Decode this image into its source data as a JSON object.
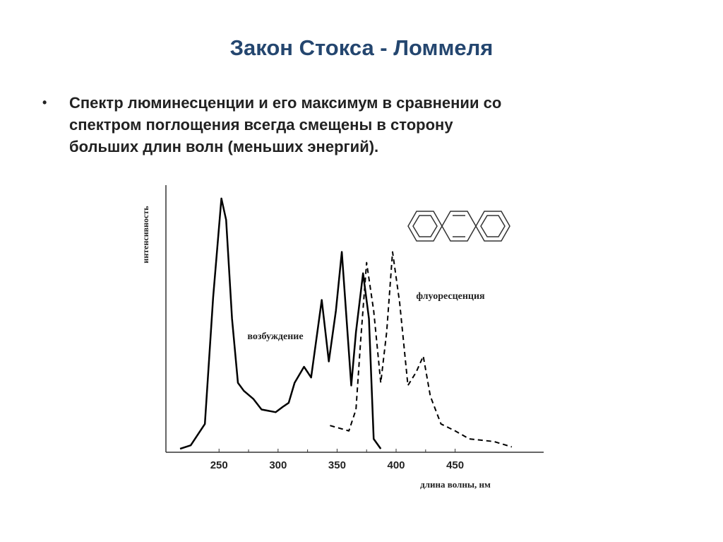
{
  "slide": {
    "title": "Закон Стокса - Ломмеля",
    "bullet_lines": [
      "Спектр люминесценции и его максимум в сравнении со",
      "спектром поглощения всегда смещены в сторону",
      "больших длин волн (меньших энергий)."
    ]
  },
  "chart_data": {
    "type": "line",
    "x_label": "длина волны, нм",
    "y_label": "интенсивность",
    "xlim": [
      205,
      525
    ],
    "xticks": [
      250,
      300,
      350,
      400,
      450
    ],
    "ylim": [
      0,
      100
    ],
    "series": [
      {
        "name": "возбуждение",
        "color": "#000000",
        "style": "solid",
        "x": [
          217,
          226,
          238,
          245,
          252,
          256,
          261,
          266,
          271,
          279,
          286,
          298,
          304,
          309,
          314,
          322,
          328,
          337,
          343,
          349,
          354,
          362,
          366,
          372,
          377,
          381,
          387
        ],
        "values": [
          1.3,
          2.6,
          10.6,
          58,
          95,
          87,
          50,
          26,
          23,
          20,
          16,
          15,
          17,
          18.5,
          26,
          32,
          28,
          57,
          34,
          53,
          75,
          25,
          45,
          67,
          50,
          5,
          1.3
        ]
      },
      {
        "name": "флуоресценция",
        "color": "#000000",
        "style": "dashed",
        "x": [
          344,
          360,
          366,
          370,
          375,
          381,
          387,
          392,
          397,
          403,
          410,
          417,
          423,
          429,
          438,
          450,
          462,
          483,
          498
        ],
        "values": [
          10,
          8,
          16,
          42,
          71,
          53,
          26,
          45,
          75,
          56,
          25,
          30,
          36,
          21,
          10.6,
          8,
          5,
          4,
          2
        ]
      }
    ]
  }
}
